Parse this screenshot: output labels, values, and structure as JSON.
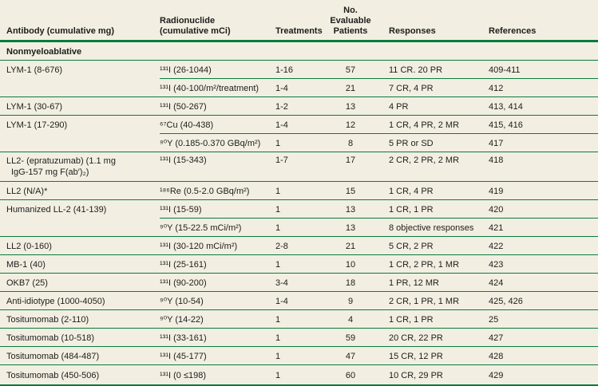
{
  "colors": {
    "accent_green": "#0b7a3e",
    "background": "#f2efe2",
    "text": "#1d1d1b"
  },
  "header": {
    "col_antibody": "Antibody (cumulative mg)",
    "col_radionuclide": "Radionuclide\n(cumulative mCi)",
    "col_treatments": "Treatments",
    "col_patients": "No.\nEvaluable\nPatients",
    "col_responses": "Responses",
    "col_references": "References"
  },
  "section": {
    "label": "Nonmyeloablative"
  },
  "rows": [
    {
      "antibody": "LYM-1 (8-676)",
      "radionuclide": "¹³¹I (26-1044)",
      "treatments": "1-16",
      "patients": "57",
      "responses": "11 CR. 20 PR",
      "references": "409-411"
    },
    {
      "antibody": "",
      "radionuclide": "¹³¹I (40-100/m²/treatment)",
      "treatments": "1-4",
      "patients": "21",
      "responses": "7 CR, 4 PR",
      "references": "412"
    },
    {
      "antibody": "LYM-1 (30-67)",
      "radionuclide": "¹³¹I (50-267)",
      "treatments": "1-2",
      "patients": "13",
      "responses": "4 PR",
      "references": "413, 414"
    },
    {
      "antibody": "LYM-1 (17-290)",
      "radionuclide": "⁶⁷Cu (40-438)",
      "treatments": "1-4",
      "patients": "12",
      "responses": "1 CR, 4 PR, 2 MR",
      "references": "415, 416"
    },
    {
      "antibody": "",
      "radionuclide": "⁹⁰Y (0.185-0.370 GBq/m²)",
      "treatments": "1",
      "patients": "8",
      "responses": "5 PR or SD",
      "references": "417"
    },
    {
      "antibody": "LL2- (epratuzumab) (1.1 mg",
      "antibody_line2": "IgG-157 mg F(ab′)₂)",
      "radionuclide": "¹³¹I (15-343)",
      "treatments": "1-7",
      "patients": "17",
      "responses": "2 CR, 2 PR, 2 MR",
      "references": "418"
    },
    {
      "antibody": "LL2 (N/A)*",
      "radionuclide": "¹⁸⁶Re (0.5-2.0 GBq/m²)",
      "treatments": "1",
      "patients": "15",
      "responses": "1 CR, 4 PR",
      "references": "419"
    },
    {
      "antibody": "Humanized LL-2 (41-139)",
      "radionuclide": "¹³¹I (15-59)",
      "treatments": "1",
      "patients": "13",
      "responses": "1 CR, 1 PR",
      "references": "420"
    },
    {
      "antibody": "",
      "radionuclide": "⁹⁰Y (15-22.5 mCi/m²)",
      "treatments": "1",
      "patients": "13",
      "responses": "8 objective responses",
      "references": "421"
    },
    {
      "antibody": "LL2 (0-160)",
      "radionuclide": "¹³¹I (30-120 mCi/m²)",
      "treatments": "2-8",
      "patients": "21",
      "responses": "5 CR, 2 PR",
      "references": "422"
    },
    {
      "antibody": "MB-1 (40)",
      "radionuclide": "¹³¹I (25-161)",
      "treatments": "1",
      "patients": "10",
      "responses": "1 CR, 2 PR, 1 MR",
      "references": "423"
    },
    {
      "antibody": "OKB7 (25)",
      "radionuclide": "¹³¹I (90-200)",
      "treatments": "3-4",
      "patients": "18",
      "responses": "1 PR, 12 MR",
      "references": "424"
    },
    {
      "antibody": "Anti-idiotype (1000-4050)",
      "radionuclide": "⁹⁰Y (10-54)",
      "treatments": "1-4",
      "patients": "9",
      "responses": "2 CR, 1 PR, 1 MR",
      "references": "425, 426"
    },
    {
      "antibody": "Tositumomab (2-110)",
      "radionuclide": "⁹⁰Y (14-22)",
      "treatments": "1",
      "patients": "4",
      "responses": "1 CR, 1 PR",
      "references": "25"
    },
    {
      "antibody": "Tositumomab (10-518)",
      "radionuclide": "¹³¹I (33-161)",
      "treatments": "1",
      "patients": "59",
      "responses": "20 CR, 22 PR",
      "references": "427"
    },
    {
      "antibody": "Tositumomab (484-487)",
      "radionuclide": "¹³¹I (45-177)",
      "treatments": "1",
      "patients": "47",
      "responses": "15 CR, 12 PR",
      "references": "428"
    },
    {
      "antibody": "Tositumomab (450-506)",
      "radionuclide": "¹³¹I (0 ≤198)",
      "treatments": "1",
      "patients": "60",
      "responses": "10 CR, 29 PR",
      "references": "429"
    }
  ]
}
